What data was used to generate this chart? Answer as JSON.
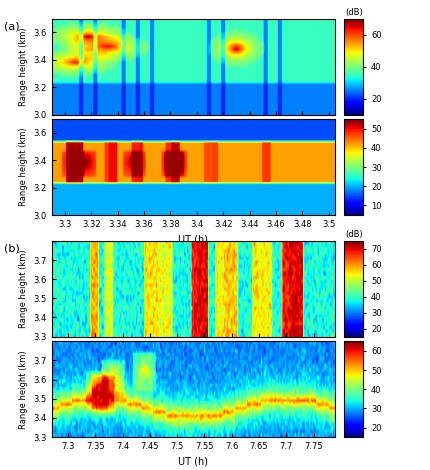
{
  "fig_label_a": "(a)",
  "fig_label_b": "(b)",
  "dB_label": "(dB)",
  "panel_a1": {
    "xlabel_vals": [
      3.3,
      3.32,
      3.34,
      3.36,
      3.38,
      3.4,
      3.42,
      3.44,
      3.46,
      3.48,
      3.5
    ],
    "xmin": 3.29,
    "xmax": 3.505,
    "ymin": 3.0,
    "ymax": 3.7,
    "yticks": [
      3.0,
      3.2,
      3.4,
      3.6
    ],
    "cmap": "jet",
    "vmin": 10,
    "vmax": 70,
    "cbar_ticks": [
      20,
      40,
      60
    ],
    "ylabel": "Range height (km)"
  },
  "panel_a2": {
    "xlabel_vals": [
      3.3,
      3.32,
      3.34,
      3.36,
      3.38,
      3.4,
      3.42,
      3.44,
      3.46,
      3.48,
      3.5
    ],
    "xmin": 3.29,
    "xmax": 3.505,
    "ymin": 3.0,
    "ymax": 3.7,
    "yticks": [
      3.0,
      3.2,
      3.4,
      3.6
    ],
    "cmap": "jet",
    "vmin": 5,
    "vmax": 55,
    "cbar_ticks": [
      10,
      20,
      30,
      40,
      50
    ],
    "ylabel": "Range height (km)",
    "xlabel": "UT (h)"
  },
  "panel_b1": {
    "xlabel_vals": [
      7.3,
      7.35,
      7.4,
      7.45,
      7.5,
      7.55,
      7.6,
      7.65,
      7.7,
      7.75
    ],
    "xmin": 7.27,
    "xmax": 7.79,
    "ymin": 3.3,
    "ymax": 3.8,
    "yticks": [
      3.3,
      3.4,
      3.5,
      3.6,
      3.7
    ],
    "cmap": "jet",
    "vmin": 15,
    "vmax": 75,
    "cbar_ticks": [
      20,
      30,
      40,
      50,
      60,
      70
    ],
    "ylabel": "Range height (km)"
  },
  "panel_b2": {
    "xlabel_vals": [
      7.3,
      7.35,
      7.4,
      7.45,
      7.5,
      7.55,
      7.6,
      7.65,
      7.7,
      7.75
    ],
    "xmin": 7.27,
    "xmax": 7.79,
    "ymin": 3.3,
    "ymax": 3.8,
    "yticks": [
      3.3,
      3.4,
      3.5,
      3.6,
      3.7
    ],
    "cmap": "jet",
    "vmin": 15,
    "vmax": 65,
    "cbar_ticks": [
      20,
      30,
      40,
      50,
      60
    ],
    "ylabel": "Range height (km)",
    "xlabel": "UT (h)"
  }
}
